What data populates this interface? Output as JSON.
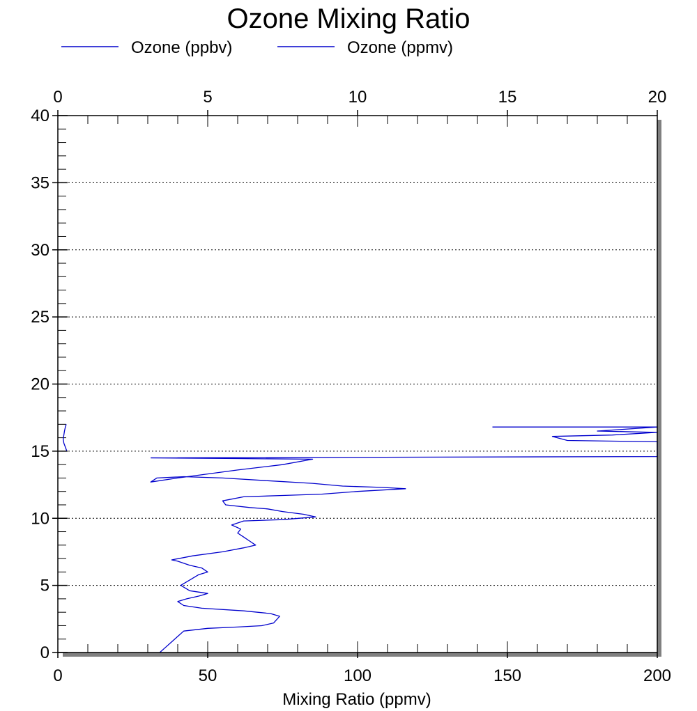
{
  "chart_data": {
    "type": "line",
    "title": "Ozone Mixing Ratio",
    "xlabel": "Mixing Ratio (ppmv)",
    "ylabel": "",
    "bottom_axis": {
      "min": 0,
      "max": 200,
      "ticks": [
        "0",
        "50",
        "100",
        "150",
        "200"
      ],
      "tick_values": [
        0,
        50,
        100,
        150,
        200
      ]
    },
    "top_axis": {
      "min": 0,
      "max": 20,
      "ticks": [
        "0",
        "5",
        "10",
        "15",
        "20"
      ],
      "tick_values": [
        0,
        5,
        10,
        15,
        20
      ]
    },
    "y_axis": {
      "min": 0,
      "max": 40,
      "ticks": [
        "0",
        "5",
        "10",
        "15",
        "20",
        "25",
        "30",
        "35",
        "40"
      ],
      "tick_values": [
        0,
        5,
        10,
        15,
        20,
        25,
        30,
        35,
        40
      ]
    },
    "grid": "horizontal dotted",
    "legend_position": "top-left",
    "series": [
      {
        "name": "Ozone (ppbv)",
        "axis": "bottom",
        "color": "#0000cc",
        "x": [
          34,
          36,
          38,
          40,
          42,
          50,
          60,
          68,
          72,
          74,
          71,
          62,
          48,
          42,
          40,
          43,
          47,
          50,
          44,
          41,
          44,
          47,
          50,
          48,
          44,
          40,
          38,
          45,
          55,
          62,
          66,
          64,
          62,
          60,
          61,
          58,
          62,
          75,
          86,
          82,
          75,
          70,
          64,
          56,
          55,
          62,
          75,
          88,
          100,
          116,
          108,
          95,
          85,
          70,
          55,
          42,
          33,
          31,
          40,
          50,
          60,
          75,
          85,
          60,
          31
        ],
        "y": [
          0.0,
          0.4,
          0.8,
          1.2,
          1.6,
          1.8,
          1.9,
          2.0,
          2.2,
          2.7,
          2.9,
          3.1,
          3.3,
          3.5,
          3.8,
          4.0,
          4.2,
          4.4,
          4.6,
          5.0,
          5.4,
          5.8,
          6.0,
          6.3,
          6.5,
          6.8,
          6.9,
          7.2,
          7.5,
          7.8,
          8.0,
          8.3,
          8.6,
          8.9,
          9.2,
          9.5,
          9.8,
          9.9,
          10.1,
          10.3,
          10.5,
          10.7,
          10.8,
          11.0,
          11.3,
          11.6,
          11.7,
          11.8,
          12.0,
          12.2,
          12.3,
          12.4,
          12.6,
          12.8,
          13.0,
          13.1,
          13.0,
          12.7,
          13.0,
          13.3,
          13.6,
          14.0,
          14.4,
          14.45,
          14.5
        ]
      },
      {
        "name": "Ozone (ppmv)",
        "axis": "top",
        "color": "#0000cc",
        "x": [
          0.3,
          0.25,
          0.2,
          0.18,
          0.2,
          0.22,
          0.25,
          0.28
        ],
        "y": [
          15.0,
          15.3,
          15.6,
          15.9,
          16.2,
          16.5,
          16.8,
          17.0
        ]
      },
      {
        "name": "",
        "axis": "bottom",
        "color": "#0000cc",
        "x": [
          31,
          200,
          200,
          170,
          165,
          185,
          200,
          180,
          200,
          145
        ],
        "y": [
          14.5,
          14.6,
          15.7,
          15.8,
          16.1,
          16.2,
          16.4,
          16.5,
          16.8,
          16.8
        ]
      }
    ]
  }
}
